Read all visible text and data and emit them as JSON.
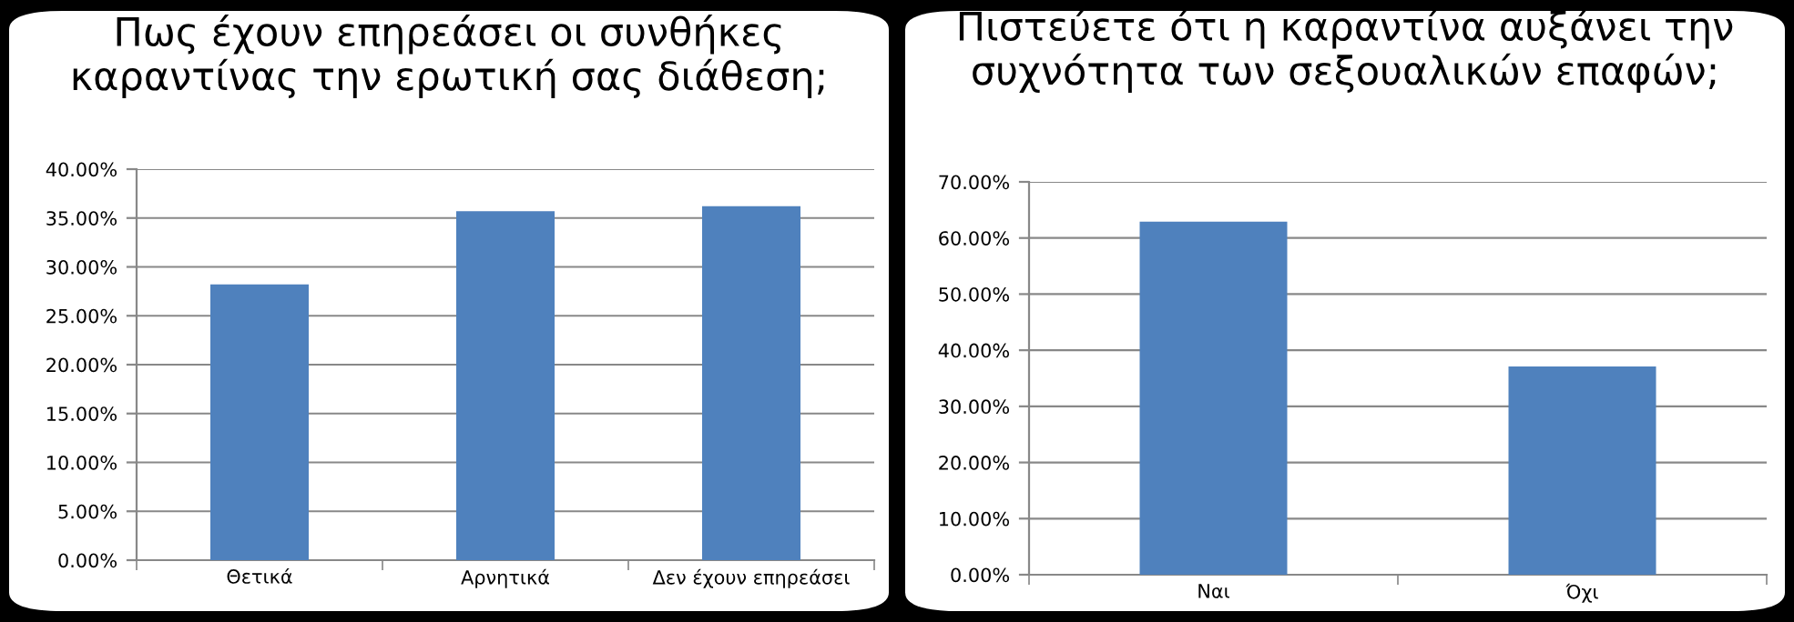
{
  "chart_data": [
    {
      "type": "bar",
      "title": "Πως έχουν επηρεάσει οι συνθήκες\nκαραντίνας την ερωτική σας διάθεση;",
      "categories": [
        "Θετικά",
        "Αρνητικά",
        "Δεν έχουν επηρεάσει"
      ],
      "values": [
        28.2,
        35.7,
        36.2
      ],
      "color": "#4f81bd",
      "ylim": [
        0,
        40
      ],
      "yticks": [
        {
          "value": 0,
          "label": "0.00%"
        },
        {
          "value": 5,
          "label": "5.00%"
        },
        {
          "value": 10,
          "label": "10.00%"
        },
        {
          "value": 15,
          "label": "15.00%"
        },
        {
          "value": 20,
          "label": "20.00%"
        },
        {
          "value": 25,
          "label": "25.00%"
        },
        {
          "value": 30,
          "label": "30.00%"
        },
        {
          "value": 35,
          "label": "35.00%"
        },
        {
          "value": 40,
          "label": "40.00%"
        }
      ],
      "grid": "y"
    },
    {
      "type": "bar",
      "title": "Πιστεύετε ότι η καραντίνα αυξάνει την\nσυχνότητα των σεξουαλικών επαφών;",
      "categories": [
        "Ναι",
        "Όχι"
      ],
      "values": [
        62.9,
        37.1
      ],
      "color": "#4f81bd",
      "ylim": [
        0,
        70
      ],
      "yticks": [
        {
          "value": 0,
          "label": "0.00%"
        },
        {
          "value": 10,
          "label": "10.00%"
        },
        {
          "value": 20,
          "label": "20.00%"
        },
        {
          "value": 30,
          "label": "30.00%"
        },
        {
          "value": 40,
          "label": "40.00%"
        },
        {
          "value": 50,
          "label": "50.00%"
        },
        {
          "value": 60,
          "label": "60.00%"
        },
        {
          "value": 70,
          "label": "70.00%"
        }
      ],
      "grid": "y"
    }
  ]
}
